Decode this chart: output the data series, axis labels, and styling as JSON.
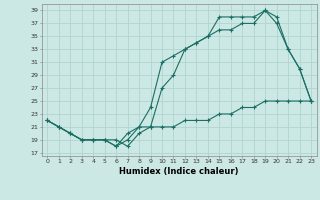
{
  "xlabel": "Humidex (Indice chaleur)",
  "ylabel": "",
  "background_color": "#cce8e4",
  "line_color": "#1a6e64",
  "grid_color": "#b0d4d0",
  "xlim": [
    -0.5,
    23.5
  ],
  "ylim": [
    16.5,
    40
  ],
  "yticks": [
    17,
    19,
    21,
    23,
    25,
    27,
    29,
    31,
    33,
    35,
    37,
    39
  ],
  "xticks": [
    0,
    1,
    2,
    3,
    4,
    5,
    6,
    7,
    8,
    9,
    10,
    11,
    12,
    13,
    14,
    15,
    16,
    17,
    18,
    19,
    20,
    21,
    22,
    23
  ],
  "line1_x": [
    0,
    1,
    2,
    3,
    4,
    5,
    6,
    7,
    8,
    9,
    10,
    11,
    12,
    13,
    14,
    15,
    16,
    17,
    18,
    19,
    20,
    21,
    22,
    23
  ],
  "line1_y": [
    22,
    21,
    20,
    19,
    19,
    19,
    18,
    19,
    21,
    24,
    31,
    32,
    33,
    34,
    35,
    36,
    36,
    37,
    37,
    39,
    38,
    33,
    30,
    25
  ],
  "line2_x": [
    0,
    1,
    2,
    3,
    4,
    5,
    6,
    7,
    8,
    9,
    10,
    11,
    12,
    13,
    14,
    15,
    16,
    17,
    18,
    19,
    20,
    21,
    22,
    23
  ],
  "line2_y": [
    22,
    21,
    20,
    19,
    19,
    19,
    18,
    20,
    21,
    21,
    27,
    29,
    33,
    34,
    35,
    38,
    38,
    38,
    38,
    39,
    37,
    33,
    30,
    25
  ],
  "line3_x": [
    0,
    1,
    2,
    3,
    4,
    5,
    6,
    7,
    8,
    9,
    10,
    11,
    12,
    13,
    14,
    15,
    16,
    17,
    18,
    19,
    20,
    21,
    22,
    23
  ],
  "line3_y": [
    22,
    21,
    20,
    19,
    19,
    19,
    19,
    18,
    20,
    21,
    21,
    21,
    22,
    22,
    22,
    23,
    23,
    24,
    24,
    25,
    25,
    25,
    25,
    25
  ]
}
